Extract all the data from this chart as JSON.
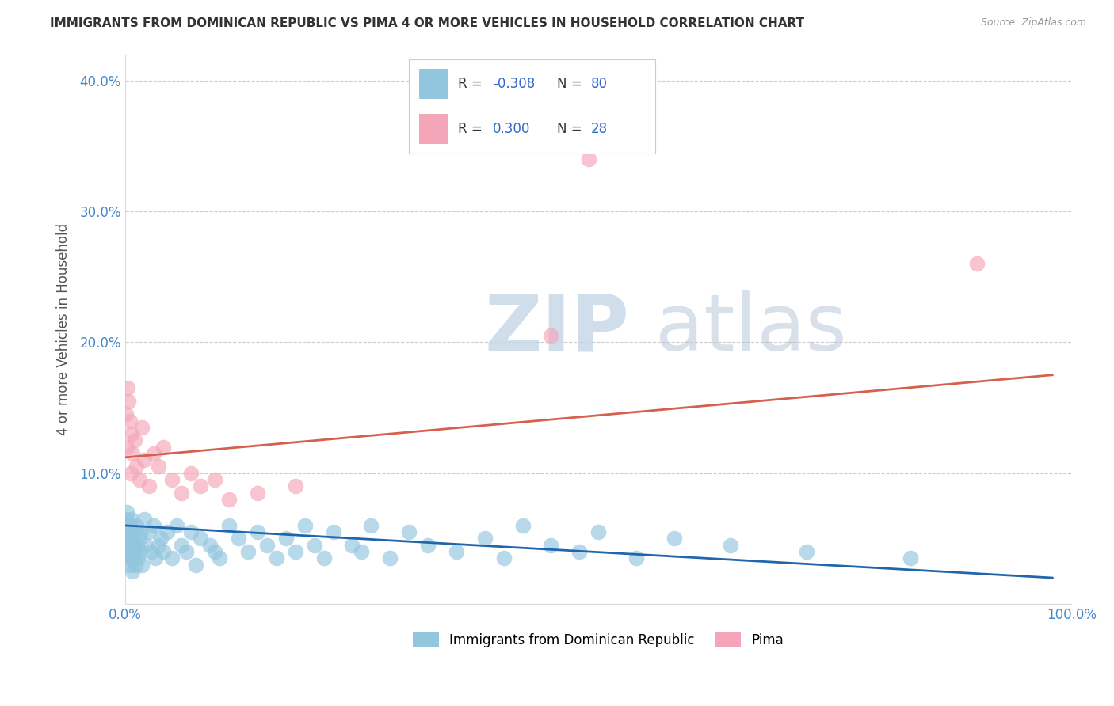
{
  "title": "IMMIGRANTS FROM DOMINICAN REPUBLIC VS PIMA 4 OR MORE VEHICLES IN HOUSEHOLD CORRELATION CHART",
  "source": "Source: ZipAtlas.com",
  "ylabel": "4 or more Vehicles in Household",
  "legend_R1": "-0.308",
  "legend_N1": "80",
  "legend_R2": "0.300",
  "legend_N2": "28",
  "legend_label1": "Immigrants from Dominican Republic",
  "legend_label2": "Pima",
  "blue_color": "#92c5de",
  "pink_color": "#f4a5b8",
  "blue_line_color": "#2166ac",
  "pink_line_color": "#d6604d",
  "watermark_zip": "ZIP",
  "watermark_atlas": "atlas",
  "background_color": "#ffffff",
  "title_color": "#333333",
  "source_color": "#999999",
  "blue_scatter_x": [
    0.001,
    0.001,
    0.002,
    0.002,
    0.002,
    0.003,
    0.003,
    0.003,
    0.004,
    0.004,
    0.005,
    0.005,
    0.005,
    0.006,
    0.006,
    0.007,
    0.007,
    0.008,
    0.008,
    0.009,
    0.01,
    0.01,
    0.011,
    0.012,
    0.013,
    0.014,
    0.015,
    0.016,
    0.017,
    0.018,
    0.02,
    0.022,
    0.025,
    0.028,
    0.03,
    0.032,
    0.035,
    0.038,
    0.04,
    0.045,
    0.05,
    0.055,
    0.06,
    0.065,
    0.07,
    0.075,
    0.08,
    0.09,
    0.095,
    0.1,
    0.11,
    0.12,
    0.13,
    0.14,
    0.15,
    0.16,
    0.17,
    0.18,
    0.19,
    0.2,
    0.21,
    0.22,
    0.24,
    0.25,
    0.26,
    0.28,
    0.3,
    0.32,
    0.35,
    0.38,
    0.4,
    0.42,
    0.45,
    0.48,
    0.5,
    0.54,
    0.58,
    0.64,
    0.72,
    0.83
  ],
  "blue_scatter_y": [
    0.055,
    0.065,
    0.05,
    0.045,
    0.07,
    0.04,
    0.06,
    0.05,
    0.035,
    0.055,
    0.045,
    0.06,
    0.03,
    0.055,
    0.04,
    0.065,
    0.035,
    0.05,
    0.025,
    0.045,
    0.055,
    0.04,
    0.03,
    0.06,
    0.045,
    0.035,
    0.05,
    0.04,
    0.055,
    0.03,
    0.065,
    0.045,
    0.055,
    0.04,
    0.06,
    0.035,
    0.045,
    0.05,
    0.04,
    0.055,
    0.035,
    0.06,
    0.045,
    0.04,
    0.055,
    0.03,
    0.05,
    0.045,
    0.04,
    0.035,
    0.06,
    0.05,
    0.04,
    0.055,
    0.045,
    0.035,
    0.05,
    0.04,
    0.06,
    0.045,
    0.035,
    0.055,
    0.045,
    0.04,
    0.06,
    0.035,
    0.055,
    0.045,
    0.04,
    0.05,
    0.035,
    0.06,
    0.045,
    0.04,
    0.055,
    0.035,
    0.05,
    0.045,
    0.04,
    0.035
  ],
  "pink_scatter_x": [
    0.001,
    0.002,
    0.003,
    0.004,
    0.005,
    0.006,
    0.007,
    0.008,
    0.01,
    0.012,
    0.015,
    0.018,
    0.02,
    0.025,
    0.03,
    0.035,
    0.04,
    0.05,
    0.06,
    0.07,
    0.08,
    0.095,
    0.11,
    0.14,
    0.18,
    0.45,
    0.49,
    0.9
  ],
  "pink_scatter_y": [
    0.145,
    0.12,
    0.165,
    0.155,
    0.14,
    0.1,
    0.13,
    0.115,
    0.125,
    0.105,
    0.095,
    0.135,
    0.11,
    0.09,
    0.115,
    0.105,
    0.12,
    0.095,
    0.085,
    0.1,
    0.09,
    0.095,
    0.08,
    0.085,
    0.09,
    0.205,
    0.34,
    0.26
  ],
  "blue_trend_x": [
    0.0,
    0.98
  ],
  "blue_trend_y": [
    0.06,
    0.02
  ],
  "pink_trend_x": [
    0.0,
    0.98
  ],
  "pink_trend_y": [
    0.112,
    0.175
  ],
  "xlim": [
    0.0,
    1.0
  ],
  "ylim": [
    0.0,
    0.42
  ],
  "yticks": [
    0.0,
    0.1,
    0.2,
    0.3,
    0.4
  ],
  "ytick_labels": [
    "",
    "10.0%",
    "20.0%",
    "30.0%",
    "40.0%"
  ]
}
